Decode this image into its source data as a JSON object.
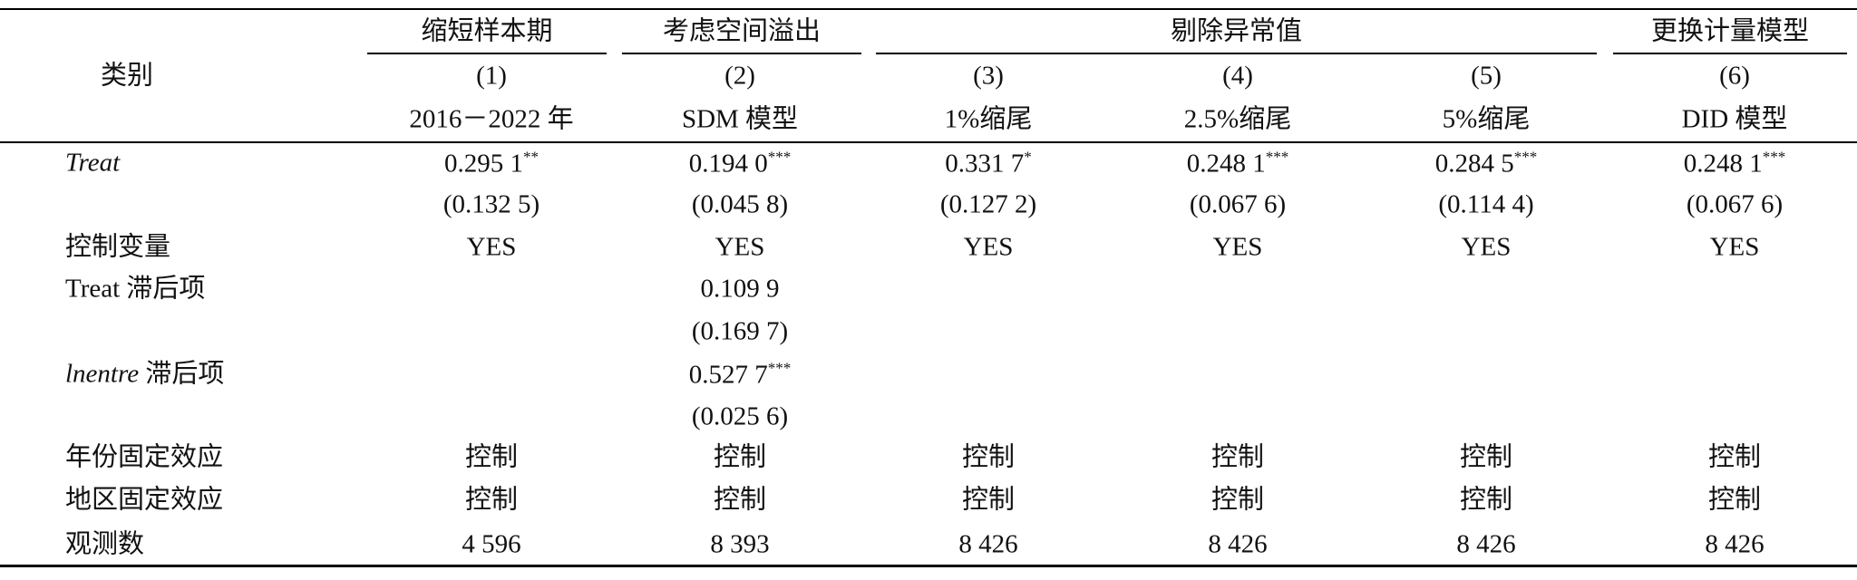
{
  "table": {
    "corner": "类别",
    "groups": [
      "缩短样本期",
      "考虑空间溢出",
      "剔除异常值",
      "更换计量模型"
    ],
    "numbers": [
      "(1)",
      "(2)",
      "(3)",
      "(4)",
      "(5)",
      "(6)"
    ],
    "subheaders": [
      "2016－2022 年",
      "SDM 模型",
      "1%缩尾",
      "2.5%缩尾",
      "5%缩尾",
      "DID 模型"
    ],
    "rows": [
      {
        "label": {
          "italic": "Treat"
        },
        "cells": [
          {
            "value": "0.295 1",
            "stars": "**"
          },
          {
            "value": "0.194 0",
            "stars": "***"
          },
          {
            "value": "0.331 7",
            "stars": "*"
          },
          {
            "value": "0.248 1",
            "stars": "***"
          },
          {
            "value": "0.284 5",
            "stars": "***"
          },
          {
            "value": "0.248 1",
            "stars": "***"
          }
        ]
      },
      {
        "cells": [
          "(0.132 5)",
          "(0.045 8)",
          "(0.127 2)",
          "(0.067 6)",
          "(0.114 4)",
          "(0.067 6)"
        ]
      },
      {
        "label": {
          "text": "控制变量"
        },
        "cells": [
          "YES",
          "YES",
          "YES",
          "YES",
          "YES",
          "YES"
        ]
      },
      {
        "label": {
          "text": "Treat 滞后项"
        },
        "cells": [
          null,
          "0.109 9",
          null,
          null,
          null,
          null
        ]
      },
      {
        "cells": [
          null,
          "(0.169 7)",
          null,
          null,
          null,
          null
        ]
      },
      {
        "label": {
          "italic": "lnentre",
          "text": " 滞后项"
        },
        "cells": [
          null,
          {
            "value": "0.527 7",
            "stars": "***"
          },
          null,
          null,
          null,
          null
        ]
      },
      {
        "cells": [
          null,
          "(0.025 6)",
          null,
          null,
          null,
          null
        ]
      },
      {
        "label": {
          "text": "年份固定效应"
        },
        "cells": [
          "控制",
          "控制",
          "控制",
          "控制",
          "控制",
          "控制"
        ]
      },
      {
        "label": {
          "text": "地区固定效应"
        },
        "cells": [
          "控制",
          "控制",
          "控制",
          "控制",
          "控制",
          "控制"
        ]
      },
      {
        "label": {
          "text": "观测数"
        },
        "cells": [
          "4 596",
          "8 393",
          "8 426",
          "8 426",
          "8 426",
          "8 426"
        ]
      }
    ]
  }
}
